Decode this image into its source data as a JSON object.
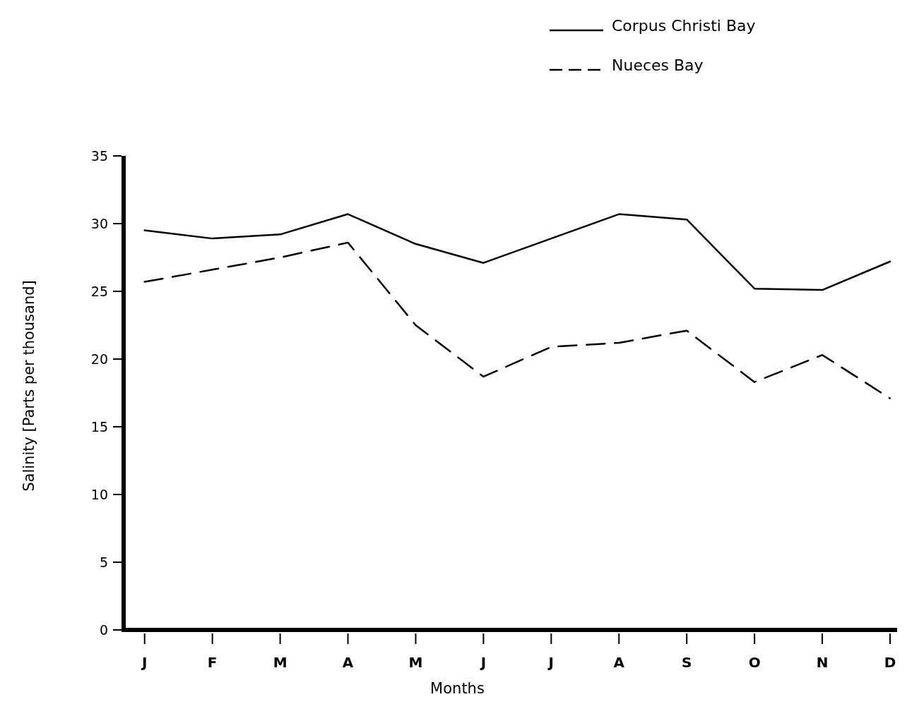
{
  "chart_data": {
    "type": "line",
    "xlabel": "Months",
    "ylabel": "Salinity [Parts per thousand]",
    "categories": [
      "J",
      "F",
      "M",
      "A",
      "M",
      "J",
      "J",
      "A",
      "S",
      "O",
      "N",
      "D"
    ],
    "series": [
      {
        "name": "Corpus Christi Bay",
        "color": "#000000",
        "line_style": "solid",
        "values": [
          29.5,
          28.9,
          29.2,
          30.7,
          28.5,
          27.1,
          28.9,
          30.7,
          30.3,
          25.2,
          25.1,
          27.2
        ]
      },
      {
        "name": "Nueces Bay",
        "color": "#000000",
        "line_style": "dashed",
        "values": [
          25.7,
          26.6,
          27.5,
          28.6,
          22.5,
          18.7,
          20.9,
          21.2,
          22.1,
          18.3,
          20.3,
          17.1
        ]
      }
    ],
    "ylim": [
      0,
      35
    ],
    "yticks": [
      0,
      5,
      10,
      15,
      20,
      25,
      30,
      35
    ],
    "grid": false,
    "legend": "top right",
    "marker": "none"
  }
}
